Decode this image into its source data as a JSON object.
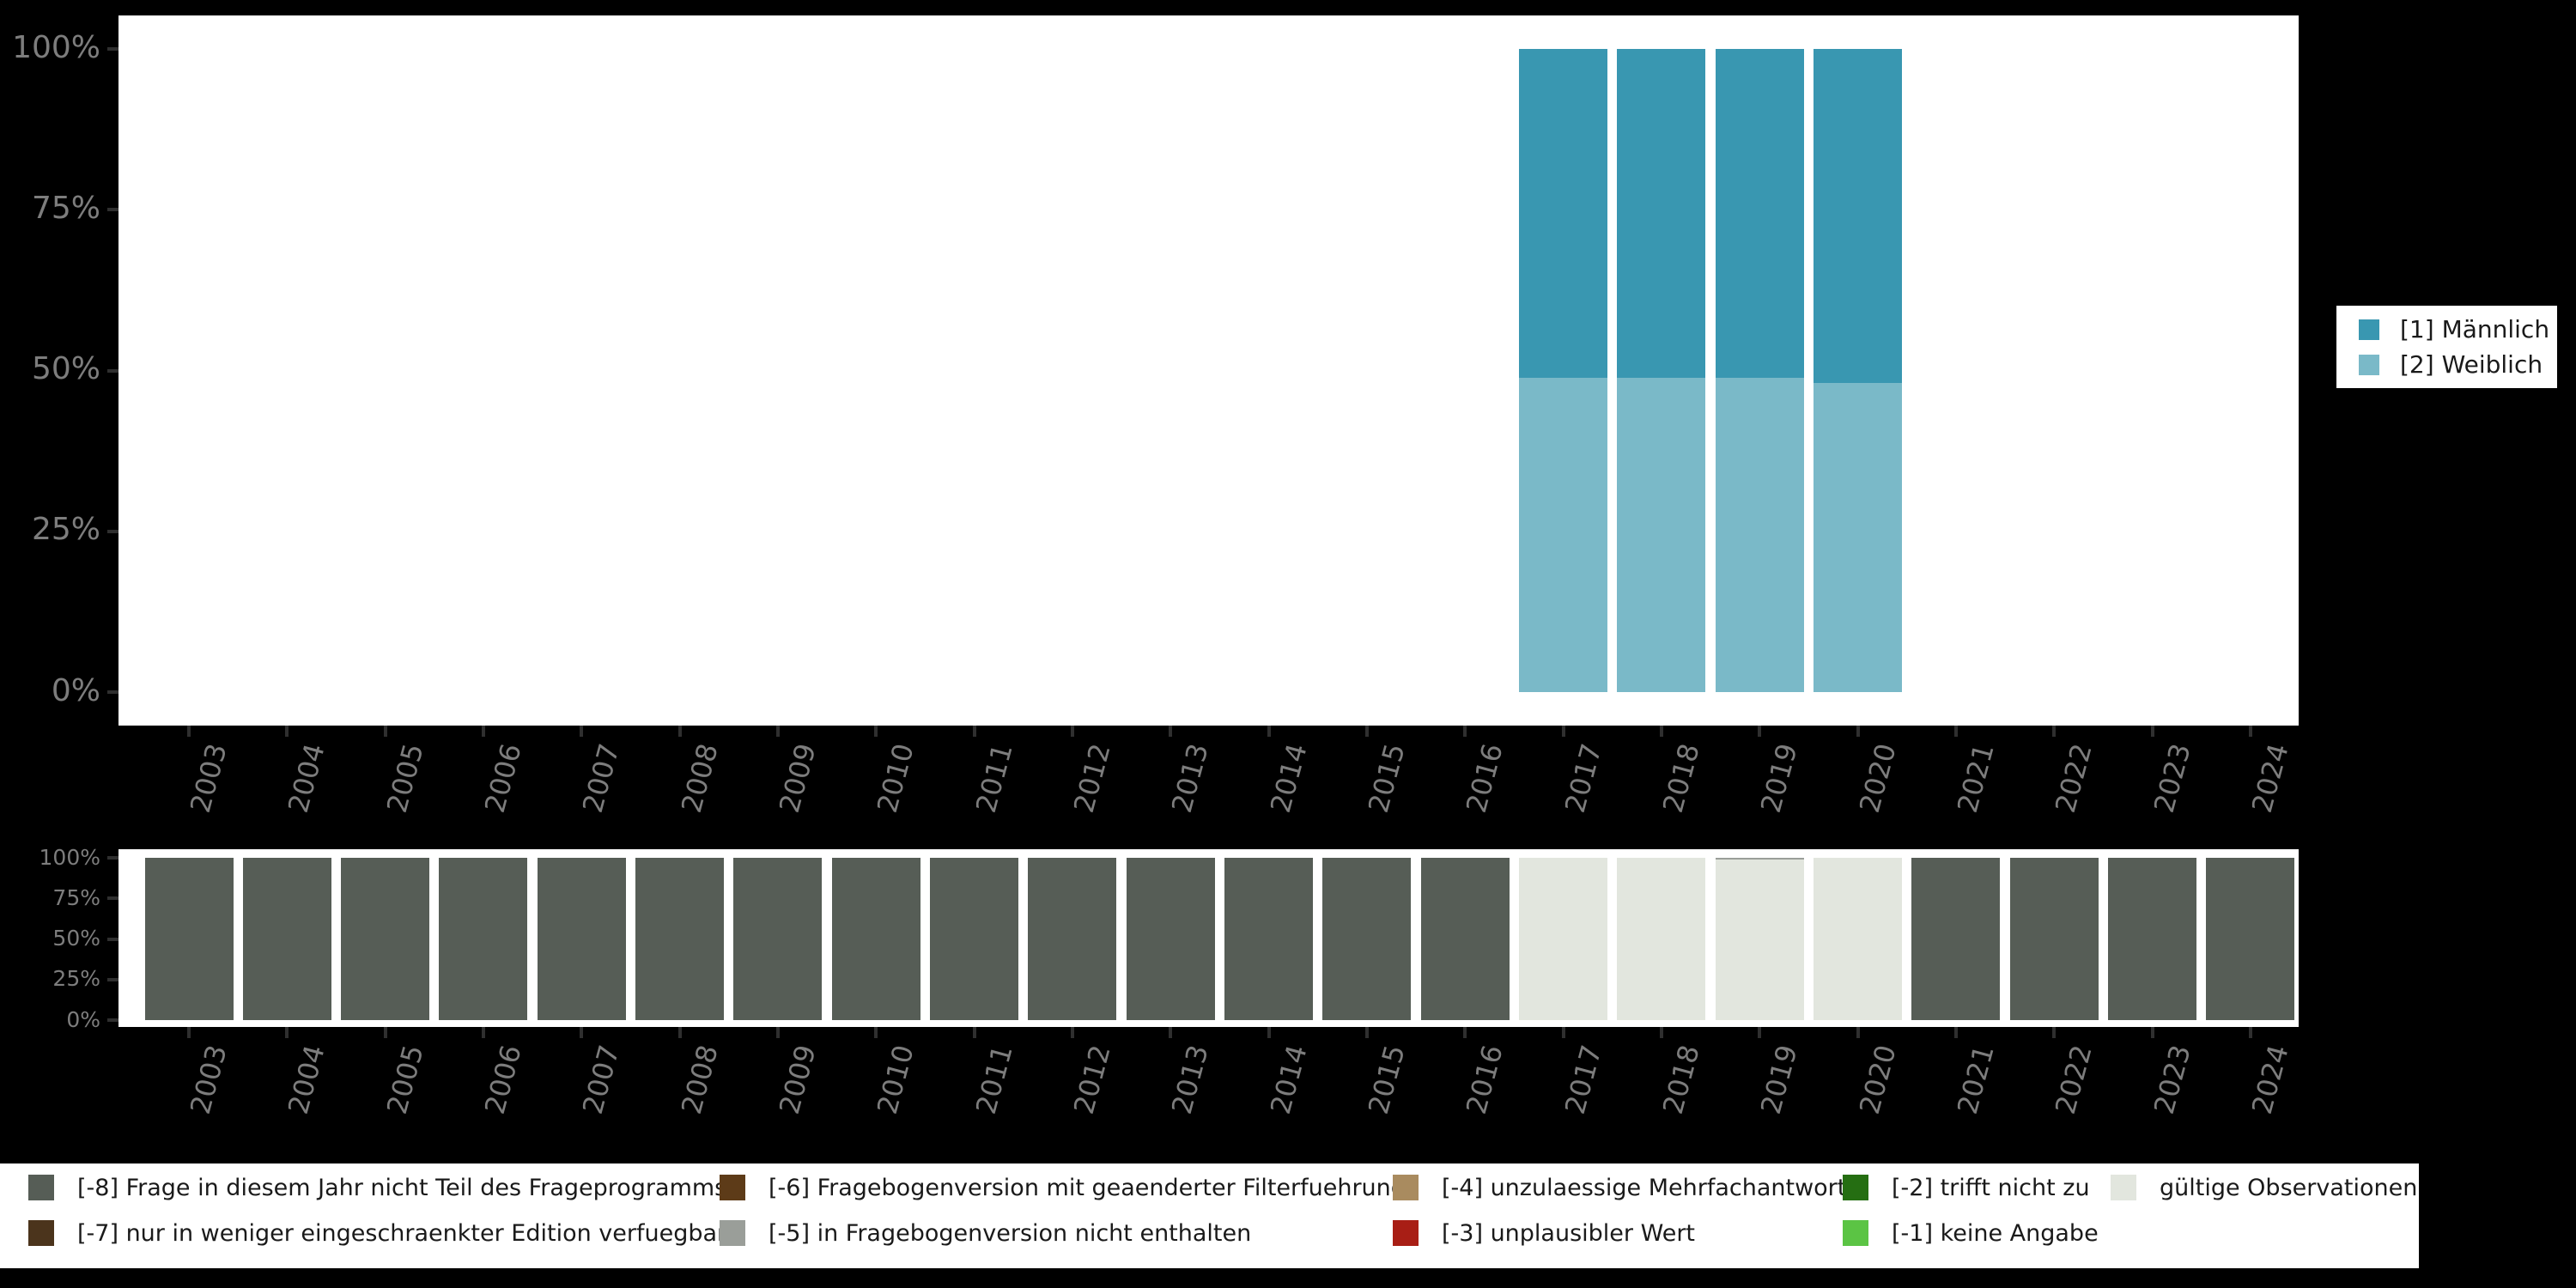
{
  "colors": {
    "background": "#000000",
    "panel": "#ffffff",
    "tick": "#2f2f2f",
    "axis_label": "#7d7d7d",
    "legend_text": "#1a1a1a",
    "maennlich": "#3997b1",
    "weiblich": "#7ab9c8",
    "m8": "#565d56",
    "m7": "#4b341c",
    "m6": "#5d3b18",
    "m5": "#9a9e99",
    "m4": "#a98b5f",
    "m3": "#a81e15",
    "m2": "#256e12",
    "m1": "#5bc444",
    "valid": "#e2e6de"
  },
  "gender_legend": {
    "items": [
      {
        "label": "[1] Männlich",
        "color_key": "maennlich"
      },
      {
        "label": "[2] Weiblich",
        "color_key": "weiblich"
      }
    ]
  },
  "missing_legend": {
    "items": [
      {
        "label": "[-8] Frage in diesem Jahr nicht Teil des Frageprogramms",
        "color_key": "m8"
      },
      {
        "label": "[-7] nur in weniger eingeschraenkter Edition verfuegbar",
        "color_key": "m7"
      },
      {
        "label": "[-6] Fragebogenversion mit geaenderter Filterfuehrung",
        "color_key": "m6"
      },
      {
        "label": "[-5] in Fragebogenversion nicht enthalten",
        "color_key": "m5"
      },
      {
        "label": "[-4] unzulaessige Mehrfachantwort",
        "color_key": "m4"
      },
      {
        "label": "[-3] unplausibler Wert",
        "color_key": "m3"
      },
      {
        "label": "[-2] trifft nicht zu",
        "color_key": "m2"
      },
      {
        "label": "[-1] keine Angabe",
        "color_key": "m1"
      },
      {
        "label": "gültige Observationen",
        "color_key": "valid"
      }
    ]
  },
  "chart_data": [
    {
      "id": "gender-by-year",
      "type": "bar",
      "stacked": true,
      "panel": "top",
      "title": "",
      "ylabel": "",
      "ylim": [
        0,
        100
      ],
      "legend_position": "right",
      "categories": [
        "2003",
        "2004",
        "2005",
        "2006",
        "2007",
        "2008",
        "2009",
        "2010",
        "2011",
        "2012",
        "2013",
        "2014",
        "2015",
        "2016",
        "2017",
        "2018",
        "2019",
        "2020",
        "2021",
        "2022",
        "2023",
        "2024"
      ],
      "yticks": [
        {
          "v": 0,
          "label": "0%"
        },
        {
          "v": 25,
          "label": "25%"
        },
        {
          "v": 50,
          "label": "50%"
        },
        {
          "v": 75,
          "label": "75%"
        },
        {
          "v": 100,
          "label": "100%"
        }
      ],
      "series": [
        {
          "name": "[2] Weiblich",
          "color_key": "weiblich",
          "values": [
            null,
            null,
            null,
            null,
            null,
            null,
            null,
            null,
            null,
            null,
            null,
            null,
            null,
            null,
            48.9,
            48.8,
            48.8,
            48.1,
            null,
            null,
            null,
            null
          ]
        },
        {
          "name": "[1] Männlich",
          "color_key": "maennlich",
          "values": [
            null,
            null,
            null,
            null,
            null,
            null,
            null,
            null,
            null,
            null,
            null,
            null,
            null,
            null,
            51.1,
            51.2,
            51.2,
            51.9,
            null,
            null,
            null,
            null
          ]
        }
      ]
    },
    {
      "id": "missing-values-by-year",
      "type": "bar",
      "stacked": true,
      "panel": "bottom",
      "title": "",
      "ylabel": "",
      "ylim": [
        0,
        100
      ],
      "legend_position": "bottom",
      "categories": [
        "2003",
        "2004",
        "2005",
        "2006",
        "2007",
        "2008",
        "2009",
        "2010",
        "2011",
        "2012",
        "2013",
        "2014",
        "2015",
        "2016",
        "2017",
        "2018",
        "2019",
        "2020",
        "2021",
        "2022",
        "2023",
        "2024"
      ],
      "yticks": [
        {
          "v": 0,
          "label": "0%"
        },
        {
          "v": 25,
          "label": "25%"
        },
        {
          "v": 50,
          "label": "50%"
        },
        {
          "v": 75,
          "label": "75%"
        },
        {
          "v": 100,
          "label": "100%"
        }
      ],
      "series": [
        {
          "name": "gültige Observationen",
          "color_key": "valid",
          "values": [
            0,
            0,
            0,
            0,
            0,
            0,
            0,
            0,
            0,
            0,
            0,
            0,
            0,
            0,
            100,
            100,
            98.7,
            100,
            0,
            0,
            0,
            0
          ]
        },
        {
          "name": "[-5] in Fragebogenversion nicht enthalten",
          "color_key": "m5",
          "values": [
            0,
            0,
            0,
            0,
            0,
            0,
            0,
            0,
            0,
            0,
            0,
            0,
            0,
            0,
            0,
            0,
            1.3,
            0,
            0,
            0,
            0,
            0
          ]
        },
        {
          "name": "[-8] Frage in diesem Jahr nicht Teil des Frageprogramms",
          "color_key": "m8",
          "values": [
            100,
            100,
            100,
            100,
            100,
            100,
            100,
            100,
            100,
            100,
            100,
            100,
            100,
            100,
            0,
            0,
            0,
            0,
            100,
            100,
            100,
            100
          ]
        }
      ]
    }
  ]
}
